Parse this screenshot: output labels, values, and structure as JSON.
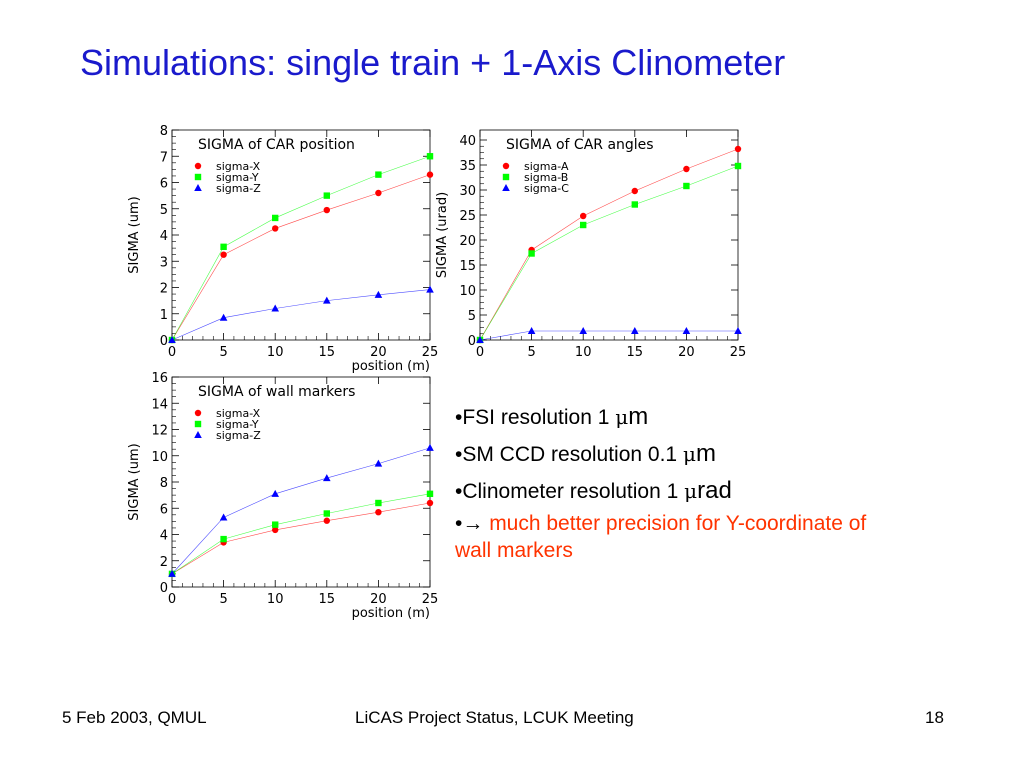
{
  "slide": {
    "title": "Simulations:  single train + 1-Axis Clinometer",
    "footer_left": "5 Feb 2003, QMUL",
    "footer_center": "LiCAS Project Status, LCUK Meeting",
    "footer_right": "18"
  },
  "bullets": {
    "b1_prefix": "•FSI resolution 1 ",
    "b1_mu": "μ",
    "b1_unit": "m",
    "b2_prefix": "•SM CCD resolution 0.1 ",
    "b2_mu": "μ",
    "b2_unit": "m",
    "b3_prefix": "•Clinometer resolution 1 ",
    "b3_mu": "μ",
    "b3_unit": "rad",
    "b4_bullet": "•",
    "b4_arrow": "→",
    "b4_text": " much better precision for Y-coordinate of wall markers"
  },
  "colors": {
    "title": "#1a1acc",
    "series_x": "#ff0000",
    "series_y": "#00ff00",
    "series_z": "#0000ff",
    "highlight_text": "#ff3300"
  },
  "chart_data": [
    {
      "type": "line",
      "title": "SIGMA of CAR position",
      "xlabel": "",
      "ylabel": "SIGMA (um)",
      "xlim": [
        0,
        25
      ],
      "ylim": [
        0,
        8
      ],
      "xticks": [
        0,
        5,
        10,
        15,
        20,
        25
      ],
      "yticks": [
        0,
        1,
        2,
        3,
        4,
        5,
        6,
        7,
        8
      ],
      "legend_position": "top-left",
      "grid": false,
      "x": [
        0,
        5,
        10,
        15,
        20,
        25
      ],
      "series": [
        {
          "name": "sigma-X",
          "marker": "circle",
          "color": "#ff0000",
          "values": [
            0,
            3.25,
            4.25,
            4.95,
            5.6,
            6.3
          ]
        },
        {
          "name": "sigma-Y",
          "marker": "square",
          "color": "#00ff00",
          "values": [
            0,
            3.55,
            4.65,
            5.5,
            6.3,
            7.0
          ]
        },
        {
          "name": "sigma-Z",
          "marker": "triangle",
          "color": "#0000ff",
          "values": [
            0,
            0.85,
            1.2,
            1.5,
            1.72,
            1.92
          ]
        }
      ]
    },
    {
      "type": "line",
      "title": "SIGMA of CAR angles",
      "xlabel": "",
      "ylabel": "SIGMA (urad)",
      "xlim": [
        0,
        25
      ],
      "ylim": [
        0,
        42
      ],
      "xticks": [
        0,
        5,
        10,
        15,
        20,
        25
      ],
      "yticks": [
        0,
        5,
        10,
        15,
        20,
        25,
        30,
        35,
        40
      ],
      "legend_position": "top-left",
      "grid": false,
      "x": [
        0,
        5,
        10,
        15,
        20,
        25
      ],
      "series": [
        {
          "name": "sigma-A",
          "marker": "circle",
          "color": "#ff0000",
          "values": [
            0,
            18.0,
            24.8,
            29.8,
            34.2,
            38.2
          ]
        },
        {
          "name": "sigma-B",
          "marker": "square",
          "color": "#00ff00",
          "values": [
            0,
            17.3,
            23.0,
            27.1,
            30.8,
            34.8
          ]
        },
        {
          "name": "sigma-C",
          "marker": "triangle",
          "color": "#0000ff",
          "values": [
            0,
            1.8,
            1.8,
            1.8,
            1.8,
            1.8
          ]
        }
      ]
    },
    {
      "type": "line",
      "title": "SIGMA of wall markers",
      "xlabel": "position (m)",
      "ylabel": "SIGMA (um)",
      "xlim": [
        0,
        25
      ],
      "ylim": [
        0,
        16
      ],
      "xticks": [
        0,
        5,
        10,
        15,
        20,
        25
      ],
      "yticks": [
        0,
        2,
        4,
        6,
        8,
        10,
        12,
        14,
        16
      ],
      "legend_position": "top-left",
      "grid": false,
      "x": [
        0,
        5,
        10,
        15,
        20,
        25
      ],
      "series": [
        {
          "name": "sigma-X",
          "marker": "circle",
          "color": "#ff0000",
          "values": [
            1.0,
            3.4,
            4.35,
            5.05,
            5.7,
            6.4
          ]
        },
        {
          "name": "sigma-Y",
          "marker": "square",
          "color": "#00ff00",
          "values": [
            1.0,
            3.65,
            4.75,
            5.6,
            6.4,
            7.1
          ]
        },
        {
          "name": "sigma-Z",
          "marker": "triangle",
          "color": "#0000ff",
          "values": [
            1.0,
            5.3,
            7.1,
            8.3,
            9.4,
            10.6
          ]
        }
      ]
    }
  ],
  "chart_annotations": {
    "top_position_label": "position (m)"
  }
}
